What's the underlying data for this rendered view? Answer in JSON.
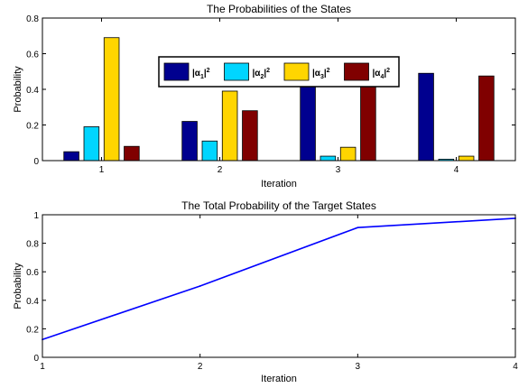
{
  "chart_data": [
    {
      "type": "bar",
      "title": "The Probabilities of the States",
      "xlabel": "Iteration",
      "ylabel": "Probability",
      "categories": [
        "1",
        "2",
        "3",
        "4"
      ],
      "ylim": [
        0,
        0.8
      ],
      "yticks": [
        "0",
        "0.2",
        "0.4",
        "0.6",
        "0.8"
      ],
      "grid": false,
      "legend_position": "top-right",
      "series": [
        {
          "name": "α1",
          "color": "#00008f",
          "values": [
            0.05,
            0.22,
            0.42,
            0.49
          ]
        },
        {
          "name": "α2",
          "color": "#00d5ff",
          "values": [
            0.19,
            0.11,
            0.025,
            0.008
          ]
        },
        {
          "name": "α3",
          "color": "#ffd500",
          "values": [
            0.69,
            0.39,
            0.075,
            0.025
          ]
        },
        {
          "name": "α4",
          "color": "#800000",
          "values": [
            0.08,
            0.28,
            0.42,
            0.475
          ]
        }
      ]
    },
    {
      "type": "line",
      "title": "The Total Probability of the Target States",
      "xlabel": "Iteration",
      "ylabel": "Probability",
      "x": [
        1,
        2,
        3,
        4
      ],
      "xlim": [
        1,
        4
      ],
      "xticks": [
        "1",
        "2",
        "3",
        "4"
      ],
      "ylim": [
        0,
        1
      ],
      "yticks": [
        "0",
        "0.2",
        "0.4",
        "0.6",
        "0.8",
        "1"
      ],
      "grid": false,
      "series": [
        {
          "color": "#0000ff",
          "values": [
            0.125,
            0.5,
            0.91,
            0.975
          ]
        }
      ]
    }
  ]
}
